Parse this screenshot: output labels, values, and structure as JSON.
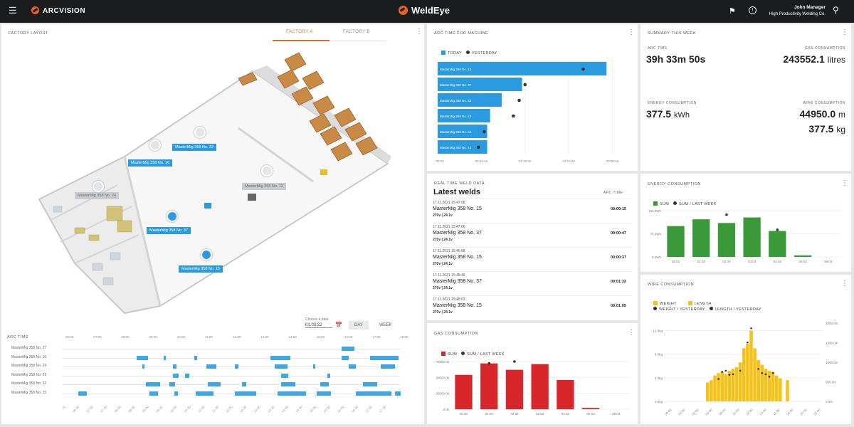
{
  "topbar": {
    "brand": "ARCVISION",
    "app_title": "WeldEye",
    "user_name": "John Manager",
    "company": "High Productivity Welding Co."
  },
  "layout_panel": {
    "title": "FACTORY LAYOUT",
    "tabs": [
      {
        "label": "FACTORY A",
        "active": true
      },
      {
        "label": "FACTORY B",
        "active": false
      }
    ]
  },
  "machine_labels": [
    "MasterMig 358 No. 32",
    "MasterMig 358 No. 16",
    "MasterMig 358 No. 24",
    "MasterMig 358 No. 12",
    "MasterMig 358 No. 37",
    "MasterMig 358 No. 15"
  ],
  "arc_time_panel": {
    "title": "ARC TIME",
    "date_caption": "Choose a date",
    "date": "01.03.22",
    "day_label": "DAY",
    "week_label": "WEEK",
    "hours": [
      "06:00",
      "07:00",
      "08:00",
      "09:00",
      "10:00",
      "11:00",
      "12:00",
      "13:00",
      "14:00",
      "15:00",
      "16:00",
      "17:00",
      "18:00"
    ],
    "rows": [
      "MasterMig 358 No. 37",
      "MasterMig 358 No. 16",
      "MasterMig 358 No. 24",
      "MasterMig 358 No. 23",
      "MasterMig 358 No. 32",
      "MasterMig 358 No. 15"
    ]
  },
  "machine_panel": {
    "title": "ARC TIME FOR MACHINE",
    "legend_today": "TODAY",
    "legend_yesterday": "YESTERDAY",
    "bars": [
      {
        "label": "MasterMig 358 No. 15",
        "today": 2.9,
        "yesterday": 2.5
      },
      {
        "label": "MasterMig 358 No. 37",
        "today": 1.45,
        "yesterday": 1.5
      },
      {
        "label": "MasterMig 358 No. 32",
        "today": 1.1,
        "yesterday": 1.4
      },
      {
        "label": "MasterMig 358 No. 16",
        "today": 0.9,
        "yesterday": 1.3
      },
      {
        "label": "MasterMig 358 No. 24",
        "today": 0.85,
        "yesterday": 0.8
      },
      {
        "label": "MasterMig 358 No. 12",
        "today": 0.85,
        "yesterday": 0.7
      }
    ],
    "ticks": [
      "00:00:00",
      "00:45:00",
      "01:30:00",
      "02:15:00",
      "03:00:00"
    ],
    "xmax": 3.3
  },
  "summary": {
    "title": "SUMMARY THIS WEEK",
    "arc_label": "ARC TIME",
    "arc_value": "39h 33m 50s",
    "gas_label": "GAS CONSUMPTION",
    "gas_value": "243552.1",
    "gas_unit": "litres",
    "energy_label": "ENERGY CONSUMPTION",
    "energy_value": "377.5",
    "energy_unit": "kWh",
    "wire_label": "WIRE CONSUMPTION",
    "wire_value1": "44950.0",
    "wire_unit1": "m",
    "wire_value2": "377.5",
    "wire_unit2": "kg"
  },
  "welds": {
    "title": "REAL TIME WELD DATA",
    "heading": "Latest welds",
    "col": "ARC TIME",
    "rows": [
      {
        "ts": "17.11.2021 15:47:08",
        "machine": "MasterMig 358 No. 15",
        "params": "270v | 24.1v",
        "dur": "00:00:15"
      },
      {
        "ts": "17.11.2021 15:47:06",
        "machine": "MasterMig 358 No. 37",
        "params": "270v | 24.1v",
        "dur": "00:00:47"
      },
      {
        "ts": "17.11.2021 15:46:08",
        "machine": "MasterMig 358 No. 15",
        "params": "270v | 24.1v",
        "dur": "00:00:37"
      },
      {
        "ts": "17.11.2021 15:45:46",
        "machine": "MasterMig 358 No. 37",
        "params": "270v | 24.1v",
        "dur": "00:01:33"
      },
      {
        "ts": "17.11.2021 15:45:03",
        "machine": "MasterMig 358 No. 15",
        "params": "270v | 24.1v",
        "dur": "00:01:05"
      }
    ]
  },
  "gas": {
    "title": "GAS CONSUMPTION",
    "legend_sum": "SUM",
    "legend_last": "SUM / LAST WEEK",
    "color": "#d9262a",
    "categories": [
      "28.02",
      "01.03",
      "02.03",
      "03.03",
      "04.03",
      "05.03",
      "06.03"
    ],
    "values": [
      54000,
      72000,
      62000,
      71000,
      46000,
      2000,
      0
    ],
    "last_week": [
      null,
      72000,
      75000,
      null,
      null,
      null,
      null
    ],
    "ymax": 75000,
    "yticks": [
      "0.0k",
      "25000.0k",
      "50000.0k",
      "75000.0k"
    ]
  },
  "energy": {
    "title": "ENERGY CONSUMPTION",
    "legend_sum": "SUM",
    "legend_last": "SUM / LAST WEEK",
    "color": "#3a9a3a",
    "categories": [
      "28.02",
      "01.03",
      "02.03",
      "03.03",
      "04.03",
      "05.03",
      "06.03"
    ],
    "values": [
      100,
      122,
      110,
      128,
      84,
      5,
      0
    ],
    "last_week": [
      null,
      null,
      137,
      null,
      88,
      null,
      null
    ],
    "ymax": 150,
    "yticks": [
      "0.0Wh",
      "75.0Wh",
      "150.0Wh"
    ]
  },
  "wire": {
    "title": "WIRE CONSUMPTION",
    "legend_weight": "WEIGHT",
    "legend_length": "LENGTH",
    "legend_wy": "WEIGHT / YESTERDAY",
    "legend_ly": "LENGTH / YESTERDAY",
    "color": "#f5c21b",
    "values": [
      3.2,
      3.6,
      4.4,
      4.8,
      5.0,
      4.6,
      5.2,
      5.5,
      5.8,
      6.6,
      9.0,
      9.8,
      12.0,
      9.0,
      7.0,
      6.2,
      5.5,
      5.2,
      5.0,
      4.4,
      3.9,
      0,
      3.6
    ],
    "yesterday": [
      null,
      null,
      null,
      3.8,
      5.0,
      5.2,
      4.5,
      4.6,
      null,
      5.2,
      null,
      10.0,
      12.4,
      null,
      5.5,
      4.8,
      4.6,
      4.2,
      4.8,
      null,
      null,
      null,
      null
    ],
    "yticks_left": [
      "0.0kg",
      "4.0kg",
      "8.0kg",
      "12.0kg"
    ],
    "yticks_right": [
      "0.0m",
      "500.0m",
      "1000.0m",
      "1500.0m",
      "2000.0m"
    ],
    "xticks": [
      "00:00",
      "02:00",
      "04:00",
      "06:00",
      "08:00",
      "10:00",
      "12:00",
      "14:00",
      "16:00",
      "18:00",
      "20:00",
      "22:00"
    ],
    "ymax": 14
  }
}
